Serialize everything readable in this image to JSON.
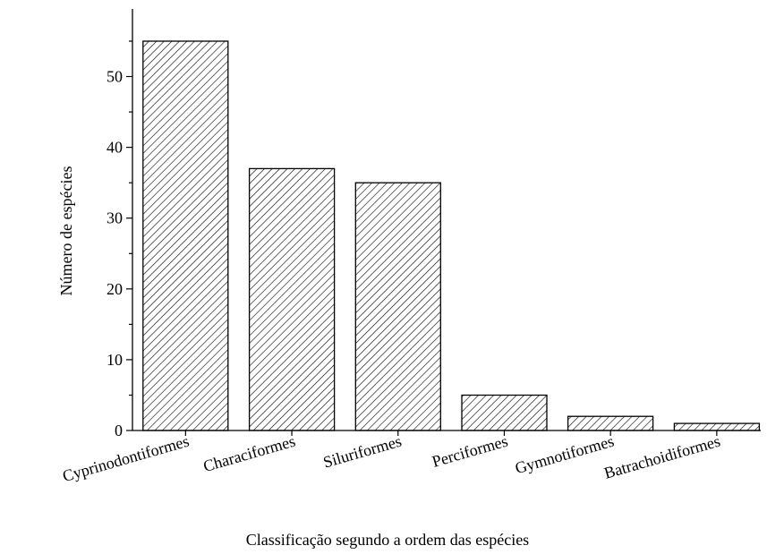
{
  "chart_data": {
    "type": "bar",
    "title": "",
    "xlabel": "Classificação segundo a ordem das espécies",
    "ylabel": "Número de espécies",
    "categories": [
      "Cyprinodontiformes",
      "Characiformes",
      "Siluriformes",
      "Perciformes",
      "Gymnotiformes",
      "Batrachoidiformes"
    ],
    "values": [
      55,
      37,
      35,
      5,
      2,
      1
    ],
    "ylim": [
      0,
      59
    ],
    "yticks": [
      0,
      10,
      20,
      30,
      40,
      50
    ],
    "grid": false,
    "bar_fill": "hatched",
    "bar_color": "#000000"
  }
}
